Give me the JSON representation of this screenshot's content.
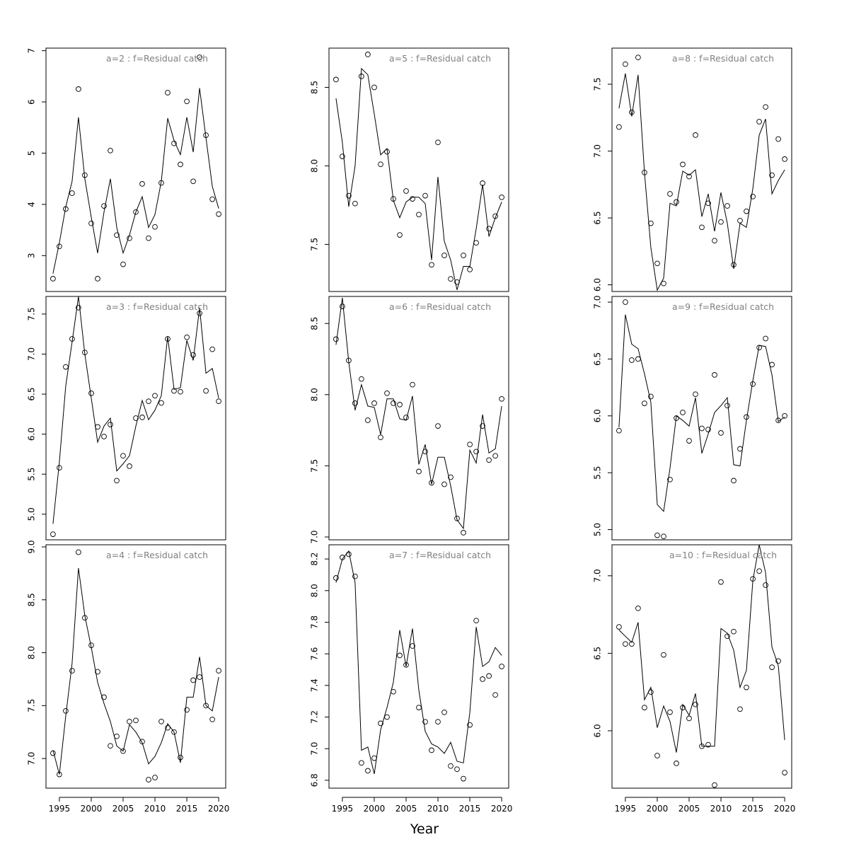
{
  "chart_data": {
    "type": "line",
    "xlabel": "Year",
    "x_ticks": [
      "1995",
      "2000",
      "2005",
      "2010",
      "2015",
      "2020"
    ],
    "xlim": [
      1992.9,
      2021.1
    ],
    "panels": [
      {
        "title": "a=2  :  f=Residual catch",
        "ylim": [
          2.3,
          7.05
        ],
        "y_ticks": [
          3,
          4,
          5,
          6,
          7
        ],
        "years": [
          1994,
          1995,
          1996,
          1997,
          1998,
          1999,
          2000,
          2001,
          2002,
          2003,
          2004,
          2005,
          2006,
          2007,
          2008,
          2009,
          2010,
          2011,
          2012,
          2013,
          2014,
          2015,
          2016,
          2017,
          2018,
          2019,
          2020
        ],
        "observed": [
          2.55,
          3.18,
          3.91,
          4.22,
          6.25,
          4.57,
          3.63,
          2.55,
          3.97,
          5.05,
          3.4,
          2.83,
          3.34,
          3.85,
          4.4,
          3.34,
          3.56,
          4.42,
          6.18,
          5.19,
          4.78,
          6.01,
          4.45,
          6.87,
          5.35,
          4.1,
          3.81
        ],
        "fitted": [
          2.65,
          3.25,
          3.95,
          4.45,
          5.7,
          4.5,
          3.75,
          3.05,
          3.85,
          4.5,
          3.55,
          3.05,
          3.4,
          3.85,
          4.15,
          3.55,
          3.8,
          4.45,
          5.68,
          5.25,
          4.97,
          5.7,
          5.02,
          6.27,
          5.3,
          4.35,
          3.92
        ]
      },
      {
        "title": "a=3  :  f=Residual catch",
        "ylim": [
          4.68,
          7.72
        ],
        "y_ticks": [
          5.0,
          5.5,
          6.0,
          6.5,
          7.0,
          7.5
        ],
        "years": [
          1994,
          1995,
          1996,
          1997,
          1998,
          1999,
          2000,
          2001,
          2002,
          2003,
          2004,
          2005,
          2006,
          2007,
          2008,
          2009,
          2010,
          2011,
          2012,
          2013,
          2014,
          2015,
          2016,
          2017,
          2018,
          2019,
          2020
        ],
        "observed": [
          4.75,
          5.58,
          6.84,
          7.19,
          7.58,
          7.02,
          6.51,
          6.09,
          5.97,
          6.12,
          5.42,
          5.73,
          5.6,
          6.2,
          6.21,
          6.41,
          6.48,
          6.39,
          7.19,
          6.54,
          6.53,
          7.21,
          6.99,
          7.51,
          6.54,
          7.06,
          6.41
        ],
        "fitted": [
          4.88,
          5.65,
          6.6,
          7.15,
          7.72,
          7.0,
          6.45,
          5.9,
          6.1,
          6.2,
          5.54,
          5.63,
          5.73,
          6.1,
          6.42,
          6.18,
          6.3,
          6.48,
          7.22,
          6.56,
          6.58,
          7.17,
          6.92,
          7.58,
          6.76,
          6.82,
          6.45
        ]
      },
      {
        "title": "a=4  :  f=Residual catch",
        "ylim": [
          6.72,
          9.02
        ],
        "y_ticks": [
          7.0,
          7.5,
          8.0,
          8.5,
          9.0
        ],
        "years": [
          1994,
          1995,
          1996,
          1997,
          1998,
          1999,
          2000,
          2001,
          2002,
          2003,
          2004,
          2005,
          2006,
          2007,
          2008,
          2009,
          2010,
          2011,
          2012,
          2013,
          2014,
          2015,
          2016,
          2017,
          2018,
          2019,
          2020
        ],
        "observed": [
          7.05,
          6.85,
          7.45,
          7.83,
          8.95,
          8.33,
          8.07,
          7.82,
          7.58,
          7.12,
          7.21,
          7.07,
          7.35,
          7.36,
          7.16,
          6.8,
          6.82,
          7.35,
          7.29,
          7.25,
          7.01,
          7.46,
          7.74,
          7.77,
          7.5,
          7.37,
          7.83
        ],
        "fitted": [
          7.08,
          6.85,
          7.4,
          7.9,
          8.8,
          8.35,
          8.05,
          7.72,
          7.52,
          7.35,
          7.12,
          7.07,
          7.32,
          7.25,
          7.15,
          6.95,
          7.02,
          7.15,
          7.33,
          7.25,
          6.96,
          7.58,
          7.58,
          7.96,
          7.5,
          7.45,
          7.77
        ]
      },
      {
        "title": "a=5  :  f=Residual catch",
        "ylim": [
          7.2,
          8.75
        ],
        "y_ticks": [
          7.5,
          8.0,
          8.5
        ],
        "years": [
          1994,
          1995,
          1996,
          1997,
          1998,
          1999,
          2000,
          2001,
          2002,
          2003,
          2004,
          2005,
          2006,
          2007,
          2008,
          2009,
          2010,
          2011,
          2012,
          2013,
          2014,
          2015,
          2016,
          2017,
          2018,
          2019,
          2020
        ],
        "observed": [
          8.55,
          8.06,
          7.81,
          7.76,
          8.57,
          8.71,
          8.5,
          8.01,
          8.09,
          7.79,
          7.56,
          7.84,
          7.79,
          7.69,
          7.81,
          7.37,
          8.15,
          7.43,
          7.28,
          7.26,
          7.43,
          7.34,
          7.51,
          7.89,
          7.6,
          7.68,
          7.8
        ],
        "fitted": [
          8.43,
          8.15,
          7.74,
          8.0,
          8.62,
          8.58,
          8.33,
          8.07,
          8.11,
          7.78,
          7.67,
          7.77,
          7.8,
          7.8,
          7.76,
          7.4,
          7.93,
          7.52,
          7.4,
          7.21,
          7.36,
          7.36,
          7.6,
          7.88,
          7.55,
          7.67,
          7.77
        ]
      },
      {
        "title": "a=6  :  f=Residual catch",
        "ylim": [
          6.98,
          8.69
        ],
        "y_ticks": [
          7.0,
          7.5,
          8.0,
          8.5
        ],
        "years": [
          1994,
          1995,
          1996,
          1997,
          1998,
          1999,
          2000,
          2001,
          2002,
          2003,
          2004,
          2005,
          2006,
          2007,
          2008,
          2009,
          2010,
          2011,
          2012,
          2013,
          2014,
          2015,
          2016,
          2017,
          2018,
          2019,
          2020
        ],
        "observed": [
          8.39,
          8.62,
          8.24,
          7.94,
          8.11,
          7.82,
          7.94,
          7.7,
          8.01,
          7.94,
          7.93,
          7.84,
          8.07,
          7.46,
          7.6,
          7.38,
          7.78,
          7.37,
          7.42,
          7.13,
          7.03,
          7.65,
          7.6,
          7.78,
          7.54,
          7.57,
          7.97
        ],
        "fitted": [
          8.35,
          8.68,
          8.23,
          7.89,
          8.07,
          7.92,
          7.91,
          7.72,
          7.97,
          7.97,
          7.83,
          7.82,
          7.99,
          7.51,
          7.65,
          7.37,
          7.56,
          7.56,
          7.36,
          7.12,
          7.06,
          7.61,
          7.52,
          7.86,
          7.59,
          7.62,
          7.92
        ]
      },
      {
        "title": "a=7  :  f=Residual catch",
        "ylim": [
          6.75,
          8.29
        ],
        "y_ticks": [
          6.8,
          7.0,
          7.2,
          7.4,
          7.6,
          7.8,
          8.0,
          8.2
        ],
        "years": [
          1994,
          1995,
          1996,
          1997,
          1998,
          1999,
          2000,
          2001,
          2002,
          2003,
          2004,
          2005,
          2006,
          2007,
          2008,
          2009,
          2010,
          2011,
          2012,
          2013,
          2014,
          2015,
          2016,
          2017,
          2018,
          2019,
          2020
        ],
        "observed": [
          8.08,
          8.21,
          8.23,
          8.09,
          6.91,
          6.86,
          6.94,
          7.16,
          7.2,
          7.36,
          7.59,
          7.53,
          7.65,
          7.26,
          7.17,
          6.99,
          7.17,
          7.23,
          6.89,
          6.87,
          6.81,
          7.15,
          7.81,
          7.44,
          7.46,
          7.34,
          7.52
        ],
        "fitted": [
          8.05,
          8.2,
          8.25,
          8.05,
          6.99,
          7.01,
          6.84,
          7.12,
          7.26,
          7.42,
          7.75,
          7.52,
          7.76,
          7.37,
          7.11,
          7.03,
          7.01,
          6.97,
          7.04,
          6.92,
          6.91,
          7.23,
          7.77,
          7.52,
          7.55,
          7.64,
          7.59
        ]
      },
      {
        "title": "a=8  :  f=Residual catch",
        "ylim": [
          5.95,
          7.77
        ],
        "y_ticks": [
          6.0,
          6.5,
          7.0,
          7.5
        ],
        "years": [
          1994,
          1995,
          1996,
          1997,
          1998,
          1999,
          2000,
          2001,
          2002,
          2003,
          2004,
          2005,
          2006,
          2007,
          2008,
          2009,
          2010,
          2011,
          2012,
          2013,
          2014,
          2015,
          2016,
          2017,
          2018,
          2019,
          2020
        ],
        "observed": [
          7.18,
          7.65,
          7.29,
          7.7,
          6.84,
          6.46,
          6.16,
          6.01,
          6.68,
          6.62,
          6.9,
          6.81,
          7.12,
          6.43,
          6.61,
          6.33,
          6.47,
          6.59,
          6.15,
          6.48,
          6.55,
          6.66,
          7.22,
          7.33,
          6.82,
          7.09,
          6.94
        ],
        "fitted": [
          7.32,
          7.58,
          7.26,
          7.57,
          6.84,
          6.28,
          5.96,
          6.05,
          6.61,
          6.59,
          6.85,
          6.82,
          6.86,
          6.51,
          6.68,
          6.4,
          6.69,
          6.46,
          6.12,
          6.46,
          6.43,
          6.72,
          7.12,
          7.24,
          6.68,
          6.78,
          6.86
        ]
      },
      {
        "title": "a=9  :  f=Residual catch",
        "ylim": [
          4.91,
          7.05
        ],
        "y_ticks": [
          5.0,
          5.5,
          6.0,
          6.5,
          7.0
        ],
        "years": [
          1994,
          1995,
          1996,
          1997,
          1998,
          1999,
          2000,
          2001,
          2002,
          2003,
          2004,
          2005,
          2006,
          2007,
          2008,
          2009,
          2010,
          2011,
          2012,
          2013,
          2014,
          2015,
          2016,
          2017,
          2018,
          2019,
          2020
        ],
        "observed": [
          5.87,
          7.0,
          6.49,
          6.5,
          6.11,
          6.17,
          4.95,
          4.94,
          5.44,
          5.98,
          6.03,
          5.78,
          6.19,
          5.89,
          5.88,
          6.36,
          5.85,
          6.09,
          5.43,
          5.71,
          5.99,
          6.28,
          6.6,
          6.68,
          6.45,
          5.96,
          6.0
        ],
        "fitted": [
          5.9,
          6.89,
          6.63,
          6.59,
          6.37,
          6.12,
          5.22,
          5.16,
          5.54,
          6.0,
          5.96,
          5.91,
          6.16,
          5.67,
          5.84,
          6.03,
          6.09,
          6.16,
          5.57,
          5.56,
          5.96,
          6.31,
          6.62,
          6.61,
          6.36,
          5.95,
          5.99
        ]
      },
      {
        "title": "a=10  :  f=Residual catch",
        "ylim": [
          5.63,
          7.2
        ],
        "y_ticks": [
          6.0,
          6.5,
          7.0
        ],
        "years": [
          1994,
          1995,
          1996,
          1997,
          1998,
          1999,
          2000,
          2001,
          2002,
          2003,
          2004,
          2005,
          2006,
          2007,
          2008,
          2009,
          2010,
          2011,
          2012,
          2013,
          2014,
          2015,
          2016,
          2017,
          2018,
          2019,
          2020
        ],
        "observed": [
          6.67,
          6.56,
          6.56,
          6.79,
          6.15,
          6.25,
          5.84,
          6.49,
          6.12,
          5.79,
          6.15,
          6.08,
          6.17,
          5.9,
          5.91,
          5.65,
          6.96,
          6.61,
          6.64,
          6.14,
          6.28,
          6.98,
          7.03,
          6.94,
          6.41,
          6.45,
          5.73
        ],
        "fitted": [
          6.65,
          6.61,
          6.57,
          6.7,
          6.2,
          6.28,
          6.02,
          6.16,
          6.06,
          5.86,
          6.17,
          6.1,
          6.24,
          5.9,
          5.9,
          5.9,
          6.66,
          6.63,
          6.52,
          6.28,
          6.39,
          6.97,
          7.2,
          7.02,
          6.54,
          6.42,
          5.94
        ]
      }
    ]
  }
}
